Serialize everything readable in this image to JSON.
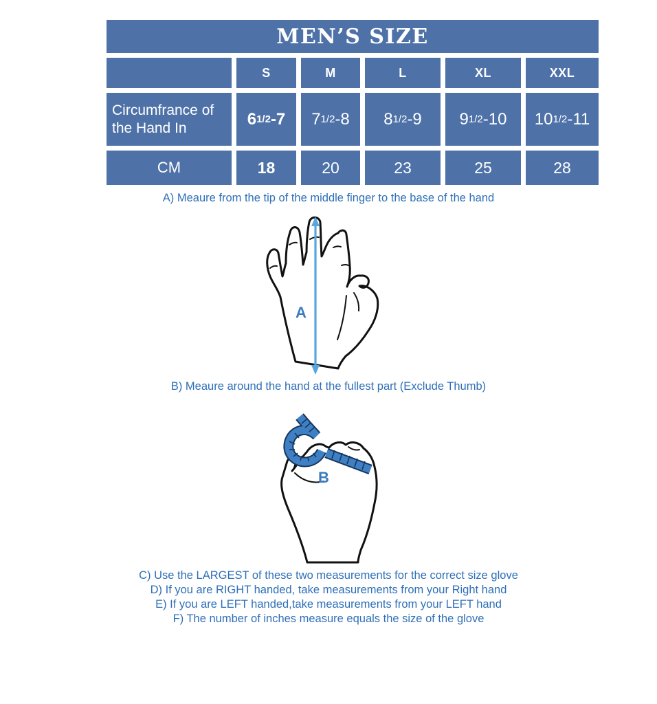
{
  "title": "MEN’S SIZE",
  "table": {
    "inches_row_label": "Circumfrance of the Hand In",
    "cm_row_label": "CM",
    "columns": [
      {
        "size": "S",
        "bold": true,
        "inches": {
          "pre": "6 ",
          "frac": "1/2",
          "post": "-7"
        },
        "cm": "18"
      },
      {
        "size": "M",
        "bold": false,
        "inches": {
          "pre": "7",
          "frac": "1/2",
          "post": "-8"
        },
        "cm": "20"
      },
      {
        "size": "L",
        "bold": false,
        "inches": {
          "pre": "8",
          "frac": "1/2",
          "post": " -9"
        },
        "cm": "23"
      },
      {
        "size": "XL",
        "bold": false,
        "inches": {
          "pre": "9",
          "frac": "1/2",
          "post": " -10"
        },
        "cm": "25"
      },
      {
        "size": "XXL",
        "bold": false,
        "inches": {
          "pre": "10",
          "frac": "1/2",
          "post": "-11"
        },
        "cm": "28"
      }
    ]
  },
  "instructions": {
    "a": "A) Meaure from the tip of the middle finger to the base of the hand",
    "b": "B) Meaure around the hand at the fullest part (Exclude Thumb)",
    "c": "C) Use the LARGEST of these two measurements for the correct size glove",
    "d": "D) If you are RIGHT handed, take measurements from your Right hand",
    "e": "E) If you are LEFT handed,take measurements from your LEFT hand",
    "f": "F) The number of inches measure equals the size of the glove"
  },
  "diagrams": {
    "hand_length": {
      "label": "A"
    },
    "hand_circumference": {
      "label": "B"
    }
  },
  "colors": {
    "table_blue": "#4e72a8",
    "text_blue": "#2e6fb7",
    "arrow_blue": "#58a6de",
    "tape_blue": "#3f80c5",
    "label_blue": "#3a7cbe"
  }
}
